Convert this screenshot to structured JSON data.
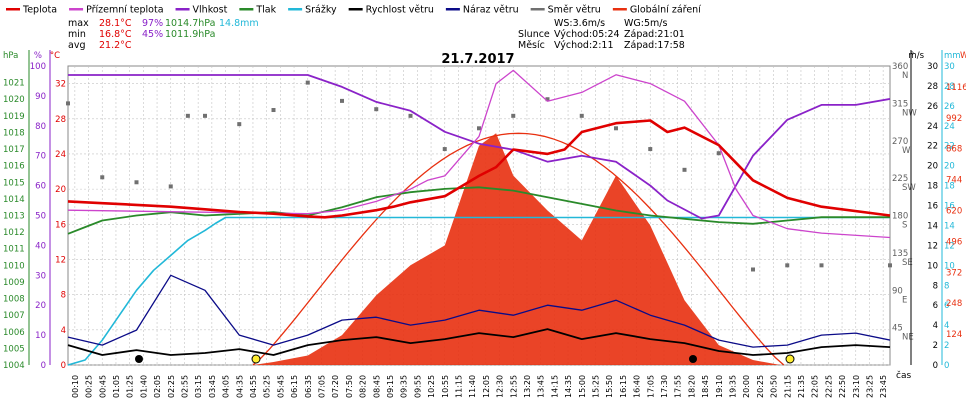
{
  "legend": {
    "items": [
      {
        "label": "Teplota",
        "color": "#e00000"
      },
      {
        "label": "Přízemní teplota",
        "color": "#cc44cc"
      },
      {
        "label": "Vlhkost",
        "color": "#8a22c8"
      },
      {
        "label": "Tlak",
        "color": "#2a8a2a"
      },
      {
        "label": "Srážky",
        "color": "#22b8d8"
      },
      {
        "label": "Rychlost větru",
        "color": "#000000"
      },
      {
        "label": "Náraz větru",
        "color": "#0b0b88"
      },
      {
        "label": "Směr větru",
        "color": "#707070"
      },
      {
        "label": "Globální záření",
        "color": "#e83010"
      }
    ]
  },
  "stats": {
    "max": {
      "label": "max",
      "temp": "28.1°C",
      "hum": "97%",
      "press": "1014.7hPa",
      "rain": "14.8mm"
    },
    "min": {
      "label": "min",
      "temp": "16.8°C",
      "hum": "45%",
      "press": "1011.9hPa"
    },
    "avg": {
      "label": "avg",
      "temp": "21.2°C"
    }
  },
  "wind_info": {
    "ws": "WS:3.6m/s",
    "wg": "WG:5m/s"
  },
  "sun": {
    "label": "Slunce",
    "rise": "Východ:05:24",
    "set": "Západ:21:01"
  },
  "moon": {
    "label": "Měsíc",
    "rise": "Východ:2:11",
    "set": "Západ:17:58"
  },
  "date": "21.7.2017",
  "time_label": "čas",
  "colors": {
    "temp": "#e00000",
    "ground": "#cc44cc",
    "hum": "#8a22c8",
    "press": "#2a8a2a",
    "rain": "#22b8d8",
    "wind": "#000000",
    "gust": "#0b0b88",
    "dir": "#707070",
    "rad": "#e83010",
    "grid": "#c4c4c4"
  },
  "chart_data": {
    "type": "line",
    "title": "21.7.2017",
    "x_unit": "čas",
    "x_ticks": [
      "00:10",
      "00:25",
      "00:45",
      "01:05",
      "01:25",
      "01:40",
      "02:05",
      "02:25",
      "02:55",
      "03:15",
      "03:45",
      "04:05",
      "04:35",
      "04:55",
      "05:25",
      "05:45",
      "06:15",
      "06:35",
      "07:05",
      "07:20",
      "07:50",
      "08:20",
      "08:45",
      "09:15",
      "09:35",
      "09:55",
      "10:25",
      "10:55",
      "11:15",
      "11:40",
      "12:05",
      "12:30",
      "12:55",
      "13:20",
      "13:45",
      "14:15",
      "14:35",
      "15:00",
      "15:25",
      "15:50",
      "16:15",
      "16:40",
      "17:05",
      "17:30",
      "17:55",
      "18:20",
      "18:45",
      "19:10",
      "19:35",
      "20:00",
      "20:25",
      "20:50",
      "21:15",
      "21:35",
      "22:05",
      "22:25",
      "22:50",
      "23:10",
      "23:25",
      "23:45"
    ],
    "axes": {
      "pressure": {
        "unit": "hPa",
        "range": [
          1004,
          1022
        ],
        "ticks": [
          "1021",
          "1020",
          "1019",
          "1018",
          "1017",
          "1016",
          "1015",
          "1014",
          "1013",
          "1012",
          "1011",
          "1010",
          "1009",
          "1008",
          "1007",
          "1006",
          "1005",
          "1004"
        ]
      },
      "humidity": {
        "unit": "%",
        "range": [
          0,
          100
        ],
        "ticks": [
          "100",
          "90",
          "80",
          "70",
          "60",
          "50",
          "40",
          "30",
          "20",
          "10",
          "0"
        ]
      },
      "temperature": {
        "unit": "°C",
        "range": [
          0,
          34
        ],
        "ticks": [
          "32",
          "28",
          "24",
          "20",
          "16",
          "12",
          "8",
          "4",
          "0"
        ]
      },
      "direction": {
        "unit": "°",
        "range": [
          0,
          360
        ],
        "ticks": [
          "360 N",
          "315 NW",
          "270 W",
          "225 SW",
          "180 S",
          "135 SE",
          "90 E",
          "45 NE"
        ]
      },
      "wind_speed": {
        "unit": "m/s",
        "range": [
          0,
          30
        ],
        "ticks": [
          "30",
          "28",
          "26",
          "24",
          "22",
          "20",
          "18",
          "16",
          "14",
          "12",
          "10",
          "8",
          "6",
          "4",
          "2",
          "0"
        ]
      },
      "rain": {
        "unit": "mm",
        "range": [
          0,
          30
        ],
        "ticks": [
          "30",
          "28",
          "26",
          "24",
          "22",
          "20",
          "18",
          "16",
          "14",
          "12",
          "10",
          "8",
          "6",
          "4",
          "2",
          "0"
        ]
      },
      "radiation": {
        "unit": "W/m²",
        "range": [
          0,
          1200
        ],
        "ticks": [
          "1116",
          "992",
          "868",
          "744",
          "620",
          "496",
          "372",
          "248",
          "124"
        ]
      }
    },
    "series": [
      {
        "name": "Teplota",
        "axis": "temperature",
        "points": [
          [
            0,
            18.6
          ],
          [
            1,
            18.4
          ],
          [
            2,
            18.2
          ],
          [
            3,
            18.0
          ],
          [
            4,
            17.7
          ],
          [
            5,
            17.4
          ],
          [
            6,
            17.2
          ],
          [
            7,
            16.9
          ],
          [
            7.5,
            16.8
          ],
          [
            8,
            17.0
          ],
          [
            9,
            17.6
          ],
          [
            9.5,
            18.0
          ],
          [
            10,
            18.5
          ],
          [
            11,
            19.2
          ],
          [
            12,
            21.5
          ],
          [
            12.5,
            22.5
          ],
          [
            13,
            24.5
          ],
          [
            14,
            24.0
          ],
          [
            14.5,
            24.5
          ],
          [
            15,
            26.5
          ],
          [
            16,
            27.5
          ],
          [
            17,
            27.8
          ],
          [
            17.5,
            26.5
          ],
          [
            18,
            27.0
          ],
          [
            19,
            25.0
          ],
          [
            19.5,
            23.0
          ],
          [
            20,
            21.0
          ],
          [
            21,
            19.0
          ],
          [
            22,
            18.0
          ],
          [
            24,
            17.0
          ]
        ]
      },
      {
        "name": "Přízemní teplota",
        "axis": "temperature",
        "points": [
          [
            0,
            17.6
          ],
          [
            7,
            17.2
          ],
          [
            8,
            17.6
          ],
          [
            9,
            18.6
          ],
          [
            10,
            20
          ],
          [
            10.5,
            21
          ],
          [
            11,
            21.5
          ],
          [
            12,
            26
          ],
          [
            12.5,
            32
          ],
          [
            13,
            33.5
          ],
          [
            14,
            30
          ],
          [
            15,
            31
          ],
          [
            16,
            33
          ],
          [
            17,
            32
          ],
          [
            18,
            30
          ],
          [
            19,
            25
          ],
          [
            19.5,
            20
          ],
          [
            20,
            17
          ],
          [
            21,
            15.5
          ],
          [
            22,
            15
          ],
          [
            24,
            14.5
          ]
        ]
      },
      {
        "name": "Vlhkost",
        "axis": "humidity",
        "points": [
          [
            0,
            97
          ],
          [
            5,
            97
          ],
          [
            7,
            97
          ],
          [
            8,
            93
          ],
          [
            9,
            88
          ],
          [
            10,
            85
          ],
          [
            11,
            78
          ],
          [
            12,
            74
          ],
          [
            13,
            72
          ],
          [
            14,
            68
          ],
          [
            15,
            70
          ],
          [
            16,
            68
          ],
          [
            17,
            60
          ],
          [
            17.5,
            55
          ],
          [
            18,
            52
          ],
          [
            18.5,
            49
          ],
          [
            19,
            50
          ],
          [
            19.5,
            60
          ],
          [
            20,
            70
          ],
          [
            21,
            82
          ],
          [
            22,
            87
          ],
          [
            23,
            87
          ],
          [
            24,
            89
          ]
        ]
      },
      {
        "name": "Tlak",
        "axis": "pressure",
        "points": [
          [
            0,
            1011.9
          ],
          [
            0.5,
            1012.3
          ],
          [
            1,
            1012.7
          ],
          [
            2,
            1013
          ],
          [
            3,
            1013.2
          ],
          [
            4,
            1013
          ],
          [
            5,
            1013.1
          ],
          [
            6,
            1013.2
          ],
          [
            7,
            1013
          ],
          [
            8,
            1013.5
          ],
          [
            9,
            1014.1
          ],
          [
            10,
            1014.4
          ],
          [
            11,
            1014.6
          ],
          [
            12,
            1014.7
          ],
          [
            13,
            1014.5
          ],
          [
            14,
            1014.1
          ],
          [
            15,
            1013.7
          ],
          [
            16,
            1013.3
          ],
          [
            17,
            1013
          ],
          [
            18,
            1012.8
          ],
          [
            19,
            1012.6
          ],
          [
            20,
            1012.5
          ],
          [
            21,
            1012.7
          ],
          [
            22,
            1012.9
          ],
          [
            24,
            1012.9
          ]
        ]
      },
      {
        "name": "Srážky",
        "axis": "rain",
        "points": [
          [
            0,
            0
          ],
          [
            0.5,
            0.5
          ],
          [
            1,
            2.5
          ],
          [
            1.5,
            5
          ],
          [
            2,
            7.5
          ],
          [
            2.5,
            9.5
          ],
          [
            3,
            11
          ],
          [
            3.5,
            12.5
          ],
          [
            4,
            13.5
          ],
          [
            4.3,
            14.2
          ],
          [
            4.6,
            14.8
          ],
          [
            5,
            14.8
          ],
          [
            24,
            14.8
          ]
        ]
      },
      {
        "name": "Globální záření",
        "axis": "radiation",
        "points": [
          [
            5.4,
            0
          ],
          [
            6,
            12
          ],
          [
            7,
            38
          ],
          [
            8,
            120
          ],
          [
            9,
            280
          ],
          [
            10,
            400
          ],
          [
            11,
            480
          ],
          [
            12,
            880
          ],
          [
            12.5,
            930
          ],
          [
            13,
            760
          ],
          [
            14,
            620
          ],
          [
            15,
            500
          ],
          [
            16,
            760
          ],
          [
            17,
            560
          ],
          [
            18,
            260
          ],
          [
            19,
            80
          ],
          [
            20,
            20
          ],
          [
            20.8,
            0
          ]
        ]
      },
      {
        "name": "Rychlost větru",
        "axis": "wind_speed",
        "points": [
          [
            0,
            2
          ],
          [
            1,
            1
          ],
          [
            2,
            1.5
          ],
          [
            3,
            1
          ],
          [
            4,
            1.2
          ],
          [
            5,
            1.6
          ],
          [
            6,
            1
          ],
          [
            7,
            2
          ],
          [
            8,
            2.5
          ],
          [
            9,
            2.8
          ],
          [
            10,
            2.2
          ],
          [
            11,
            2.6
          ],
          [
            12,
            3.2
          ],
          [
            13,
            2.8
          ],
          [
            14,
            3.6
          ],
          [
            15,
            2.6
          ],
          [
            16,
            3.2
          ],
          [
            17,
            2.6
          ],
          [
            18,
            2.2
          ],
          [
            19,
            1.4
          ],
          [
            20,
            1
          ],
          [
            21,
            1.2
          ],
          [
            22,
            1.8
          ],
          [
            23,
            2
          ],
          [
            24,
            1.8
          ]
        ]
      },
      {
        "name": "Náraz větru",
        "axis": "wind_speed",
        "points": [
          [
            0,
            2.8
          ],
          [
            1,
            2
          ],
          [
            2,
            3.5
          ],
          [
            3,
            9
          ],
          [
            4,
            7.5
          ],
          [
            5,
            3
          ],
          [
            6,
            2
          ],
          [
            7,
            3
          ],
          [
            8,
            4.5
          ],
          [
            9,
            4.8
          ],
          [
            10,
            4
          ],
          [
            11,
            4.5
          ],
          [
            12,
            5.5
          ],
          [
            13,
            5
          ],
          [
            14,
            6
          ],
          [
            15,
            5.5
          ],
          [
            16,
            6.5
          ],
          [
            17,
            5
          ],
          [
            18,
            4
          ],
          [
            19,
            2.5
          ],
          [
            20,
            1.8
          ],
          [
            21,
            2
          ],
          [
            22,
            3
          ],
          [
            23,
            3.2
          ],
          [
            24,
            2.5
          ]
        ]
      },
      {
        "name": "Směr větru",
        "axis": "direction",
        "points": [
          [
            0,
            315
          ],
          [
            1,
            226
          ],
          [
            2,
            220
          ],
          [
            3,
            215
          ],
          [
            3.5,
            300
          ],
          [
            4,
            300
          ],
          [
            5,
            290
          ],
          [
            6,
            307
          ],
          [
            7,
            340
          ],
          [
            8,
            318
          ],
          [
            9,
            308
          ],
          [
            10,
            300
          ],
          [
            11,
            260
          ],
          [
            12,
            285
          ],
          [
            13,
            300
          ],
          [
            14,
            320
          ],
          [
            15,
            300
          ],
          [
            16,
            285
          ],
          [
            17,
            260
          ],
          [
            18,
            235
          ],
          [
            19,
            255
          ],
          [
            20,
            115
          ],
          [
            21,
            120
          ],
          [
            22,
            120
          ],
          [
            24,
            120
          ]
        ]
      }
    ]
  }
}
